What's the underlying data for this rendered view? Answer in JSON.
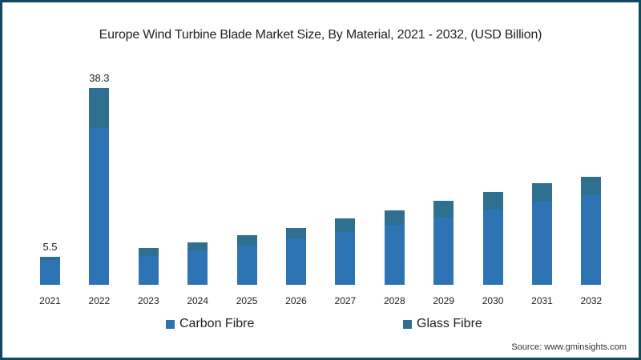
{
  "chart_data": {
    "type": "bar",
    "stacked": true,
    "title": "Europe Wind Turbine Blade Market Size, By Material, 2021 - 2032, (USD Billion)",
    "xlabel": "",
    "ylabel": "",
    "categories": [
      "2021",
      "2022",
      "2023",
      "2024",
      "2025",
      "2026",
      "2027",
      "2028",
      "2029",
      "2030",
      "2031",
      "2032"
    ],
    "series": [
      {
        "name": "Carbon Fibre",
        "color": "#2e74b5",
        "values": [
          4.8,
          30.5,
          5.6,
          6.7,
          7.6,
          9.0,
          10.3,
          11.7,
          13.1,
          14.6,
          16.2,
          17.4
        ]
      },
      {
        "name": "Glass Fibre",
        "color": "#2f6f8f",
        "values": [
          0.7,
          7.8,
          1.6,
          1.6,
          2.0,
          2.0,
          2.6,
          2.8,
          3.3,
          3.4,
          3.6,
          3.7
        ]
      }
    ],
    "data_labels": [
      {
        "category": "2021",
        "value": "5.5"
      },
      {
        "category": "2022",
        "value": "38.3"
      }
    ],
    "ylim": [
      0,
      40
    ],
    "grid": false,
    "legend_position": "bottom"
  },
  "legend": [
    {
      "label": "Carbon Fibre",
      "color": "#2e74b5"
    },
    {
      "label": "Glass Fibre",
      "color": "#2f6f8f"
    }
  ],
  "source": "Source: www.gminsights.com"
}
